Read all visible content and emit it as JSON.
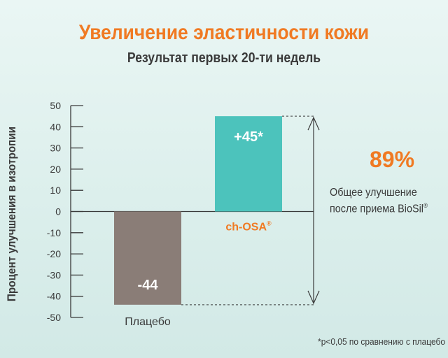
{
  "chart_data": {
    "type": "bar",
    "title": "Увеличение эластичности кожи",
    "subtitle": "Результат первых 20-ти недель",
    "ylabel": "Процент улучшения в изотропии",
    "xlabel": "",
    "ylim": [
      -50,
      50
    ],
    "yticks": [
      50,
      40,
      30,
      20,
      10,
      0,
      -10,
      -20,
      -30,
      -40,
      -50
    ],
    "categories": [
      "Плацебо",
      "ch-OSA"
    ],
    "category_suffix": [
      "",
      "®"
    ],
    "values": [
      -44,
      45
    ],
    "data_labels": [
      "-44",
      "+45*"
    ],
    "colors": [
      "#8a7d77",
      "#4cc3bc"
    ],
    "grid": false,
    "annotation": {
      "value": "89%",
      "caption_line1": "Общее улучшение",
      "caption_line2": "после приема BioSil",
      "caption_suffix": "®"
    },
    "footnote": "*p<0,05 по сравнению с плацебо"
  },
  "colors": {
    "accent": "#f07a23",
    "text": "#3a3a3a",
    "placebo_bar": "#8a7d77",
    "osa_bar": "#4cc3bc"
  }
}
